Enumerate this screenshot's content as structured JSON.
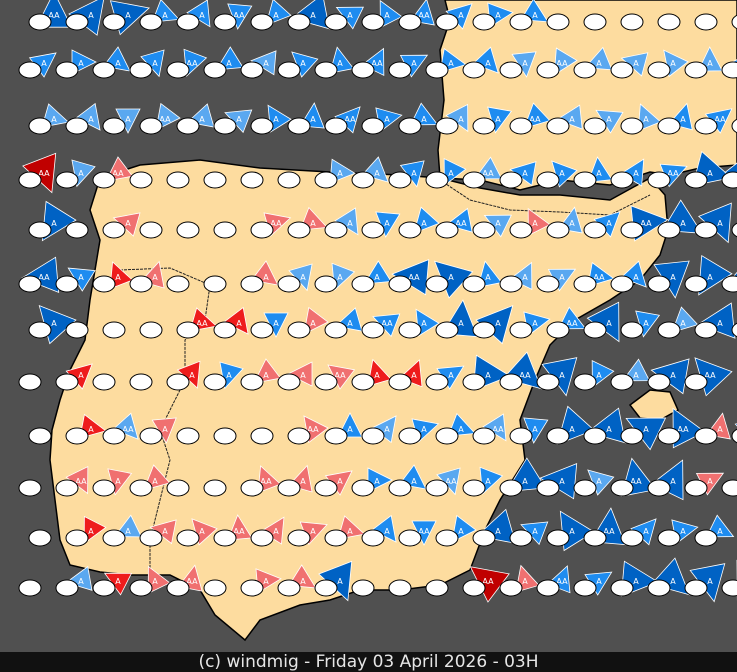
{
  "map": {
    "region": "Iberian Peninsula",
    "colors": {
      "sea": "#505050",
      "land": "#fddc9f",
      "border": "#000000",
      "station": "#ffffff",
      "wind_dark_blue": "#0062c4",
      "wind_blue": "#1e8cf0",
      "wind_light_blue": "#5aa8f0",
      "wind_light_red": "#f07070",
      "wind_red": "#ee1c1c",
      "wind_dark_red": "#c00000"
    },
    "marker_labels": [
      "A",
      "AA"
    ],
    "wind_rows": [
      "dB dB dB mB mB mB mB dB mB mB mB mB mB mB . . . . . .",
      "mB mB mB mB mB mB lB mB mB mB mB mB mB lB lB lB lB lB lB mB",
      "lB lB lB lB lB lB mB mB mB mB mB lB mB mB lB lB lB mB mB mB",
      "dr lB lR . . . . . lB lB mB mB lB mB mB mB mB mB dB dB dB",
      "dB . lR . . . lR lR lB mB mB mB lB lR lB mB dB dB dB dB",
      "dB mB rR lR . . lR lB lB mB dB dB mB lB lB mB mB dB dB dB",
      "dB . . . rR rR mB lR mB mB mB dB dB mB mB dB mB lB dB dB",
      ". rR . . rR mB lR lR lR rR rR mB dB dB dB mB lB dB dB",
      ". rR lB lR . . . lR mB lB mB mB lB mB dB dB dB dB lR dB",
      ". lR lR lR . . lR lR lR mB mB lB mB dB dB lB dB dB lR lB",
      ". rR lB lR lR lR lR lR lR mB mB mB dB mB dB dB mB mB mB",
      ". lB rR lR lR . lR lR dB . . . dr lR mB mB dB dB dB dB"
    ]
  },
  "footer": {
    "text": "(c) windmig - Friday 03 April 2026 - 03H"
  }
}
